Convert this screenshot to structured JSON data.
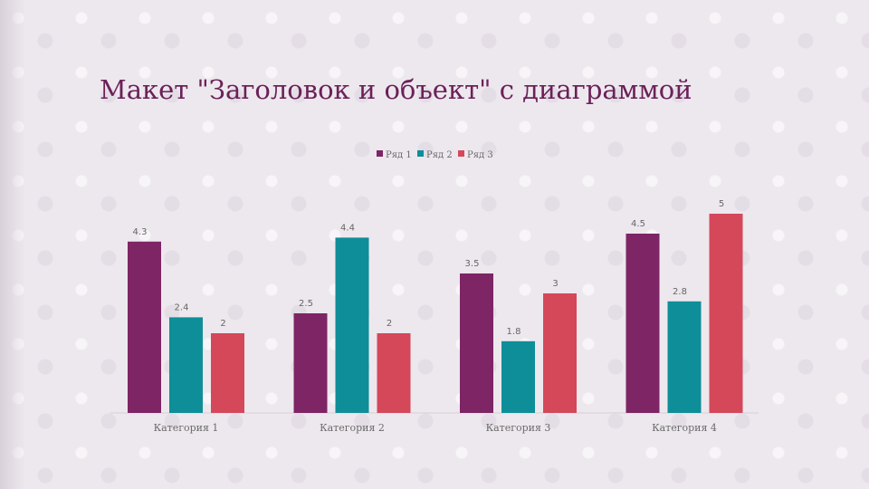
{
  "slide": {
    "title": "Макет \"Заголовок и объект\" с диаграммой"
  },
  "chart_data": {
    "type": "bar",
    "categories": [
      "Категория 1",
      "Категория 2",
      "Категория 3",
      "Категория 4"
    ],
    "series": [
      {
        "name": "Ряд 1",
        "color": "#7e2565",
        "values": [
          4.3,
          2.5,
          3.5,
          4.5
        ]
      },
      {
        "name": "Ряд 2",
        "color": "#0e8e98",
        "values": [
          2.4,
          4.4,
          1.8,
          2.8
        ]
      },
      {
        "name": "Ряд 3",
        "color": "#d4485a",
        "values": [
          2,
          2,
          3,
          5
        ]
      }
    ],
    "ylim": [
      0,
      5
    ],
    "legend_position": "top",
    "grid": false,
    "data_labels": true
  }
}
